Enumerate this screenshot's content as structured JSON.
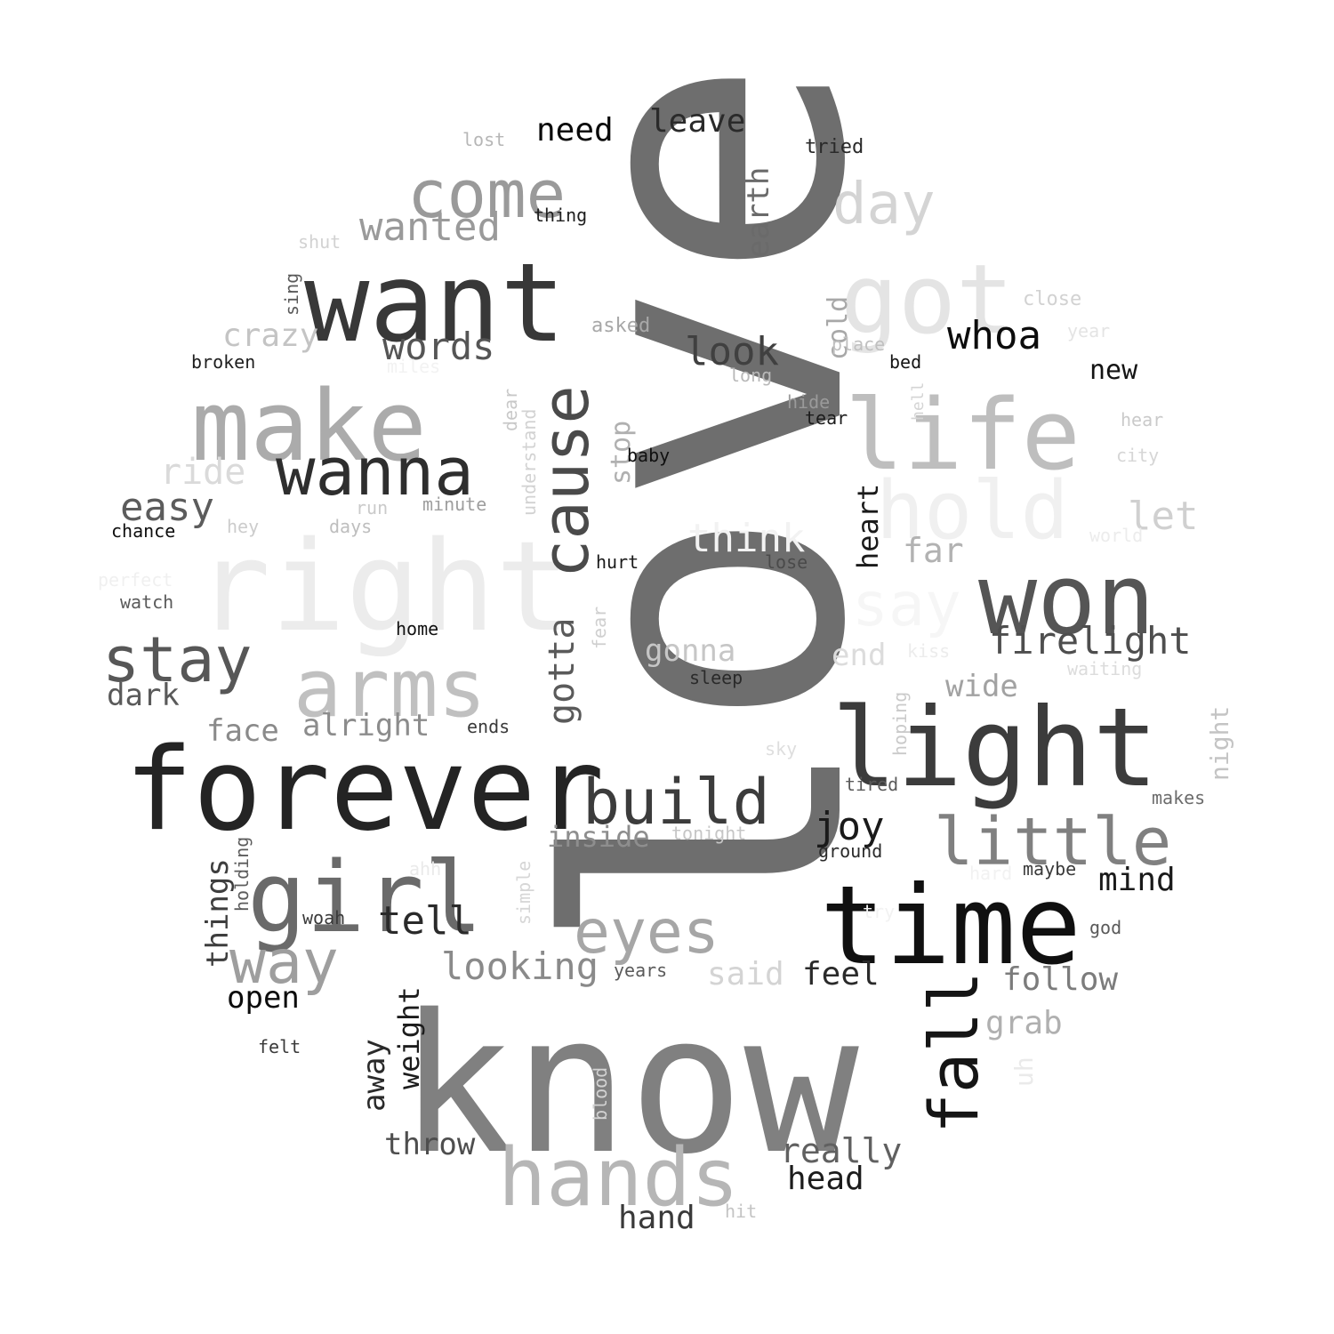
{
  "words": [
    {
      "text": "love",
      "color": "#6e6e6e",
      "vertical": true
    },
    {
      "text": "know",
      "color": "#808080"
    },
    {
      "text": "right",
      "color": "#ececec"
    },
    {
      "text": "forever",
      "color": "#242424"
    },
    {
      "text": "want",
      "color": "#383838"
    },
    {
      "text": "time",
      "color": "#101010"
    },
    {
      "text": "light",
      "color": "#3c3c3c"
    },
    {
      "text": "make",
      "color": "#ababab"
    },
    {
      "text": "life",
      "color": "#bebebe"
    },
    {
      "text": "girl",
      "color": "#6a6a6a"
    },
    {
      "text": "won",
      "color": "#555555"
    },
    {
      "text": "got",
      "color": "#e4e4e4"
    },
    {
      "text": "arms",
      "color": "#c0c0c0"
    },
    {
      "text": "hold",
      "color": "#f0f0f0"
    },
    {
      "text": "hands",
      "color": "#b6b6b6"
    },
    {
      "text": "come",
      "color": "#9a9a9a"
    },
    {
      "text": "cause",
      "color": "#4a4a4a",
      "vertical": true
    },
    {
      "text": "wanna",
      "color": "#2e2e2e"
    },
    {
      "text": "little",
      "color": "#808080"
    },
    {
      "text": "fall",
      "color": "#151515",
      "vertical": true
    },
    {
      "text": "stay",
      "color": "#575757"
    },
    {
      "text": "build",
      "color": "#3c3c3c"
    },
    {
      "text": "eyes",
      "color": "#a6a6a6"
    },
    {
      "text": "way",
      "color": "#9e9e9e"
    },
    {
      "text": "say",
      "color": "#f6f6f6"
    },
    {
      "text": "day",
      "color": "#d4d4d4"
    },
    {
      "text": "think",
      "color": "#f2f2f2"
    },
    {
      "text": "gotta",
      "color": "#5a5a5a",
      "vertical": true
    },
    {
      "text": "whoa",
      "color": "#0c0c0c"
    },
    {
      "text": "words",
      "color": "#555555"
    },
    {
      "text": "firelight",
      "color": "#4e4e4e"
    },
    {
      "text": "look",
      "color": "#404040"
    },
    {
      "text": "wanted",
      "color": "#9a9a9a"
    },
    {
      "text": "easy",
      "color": "#5c5c5c"
    },
    {
      "text": "tell",
      "color": "#2a2a2a"
    },
    {
      "text": "looking",
      "color": "#8a8a8a"
    },
    {
      "text": "leave",
      "color": "#2a2a2a"
    },
    {
      "text": "need",
      "color": "#0a0a0a"
    },
    {
      "text": "crazy",
      "color": "#c4c4c4"
    },
    {
      "text": "ride",
      "color": "#dadada"
    },
    {
      "text": "let",
      "color": "#d0d0d0"
    },
    {
      "text": "far",
      "color": "#b2b2b2"
    },
    {
      "text": "gonna",
      "color": "#c6c6c6"
    },
    {
      "text": "alright",
      "color": "#8c8c8c"
    },
    {
      "text": "face",
      "color": "#8a8a8a"
    },
    {
      "text": "dark",
      "color": "#5a5a5a"
    },
    {
      "text": "joy",
      "color": "#1a1a1a"
    },
    {
      "text": "end",
      "color": "#dcdcdc"
    },
    {
      "text": "wide",
      "color": "#a2a2a2"
    },
    {
      "text": "inside",
      "color": "#8e8e8e"
    },
    {
      "text": "mind",
      "color": "#1a1a1a"
    },
    {
      "text": "said",
      "color": "#d4d4d4"
    },
    {
      "text": "feel",
      "color": "#2a2a2a"
    },
    {
      "text": "follow",
      "color": "#7c7c7c"
    },
    {
      "text": "grab",
      "color": "#b0b0b0"
    },
    {
      "text": "open",
      "color": "#0c0c0c"
    },
    {
      "text": "throw",
      "color": "#4e4e4e"
    },
    {
      "text": "really",
      "color": "#606060"
    },
    {
      "text": "head",
      "color": "#1c1c1c"
    },
    {
      "text": "hand",
      "color": "#3a3a3a"
    },
    {
      "text": "new",
      "color": "#141414"
    },
    {
      "text": "things",
      "color": "#3e3e3e",
      "vertical": true
    },
    {
      "text": "away",
      "color": "#2a2a2a",
      "vertical": true
    },
    {
      "text": "weight",
      "color": "#1c1c1c",
      "vertical": true
    },
    {
      "text": "heart",
      "color": "#1a1a1a",
      "vertical": true
    },
    {
      "text": "earth",
      "color": "#6a6a6a",
      "vertical": true
    },
    {
      "text": "stop",
      "color": "#b0b0b0",
      "vertical": true
    },
    {
      "text": "cold",
      "color": "#a8a8a8",
      "vertical": true
    },
    {
      "text": "night",
      "color": "#c4c4c4",
      "vertical": true
    },
    {
      "text": "uh",
      "color": "#eaeaea",
      "vertical": true
    },
    {
      "text": "lost",
      "color": "#b6b6b6"
    },
    {
      "text": "tried",
      "color": "#2a2a2a"
    },
    {
      "text": "thing",
      "color": "#1e1e1e"
    },
    {
      "text": "shut",
      "color": "#d2d2d2"
    },
    {
      "text": "sing",
      "color": "#5a5a5a",
      "vertical": true
    },
    {
      "text": "close",
      "color": "#d2d2d2"
    },
    {
      "text": "year",
      "color": "#e4e4e4"
    },
    {
      "text": "asked",
      "color": "#a8a8a8"
    },
    {
      "text": "place",
      "color": "#c0c0c0"
    },
    {
      "text": "bed",
      "color": "#141414"
    },
    {
      "text": "broken",
      "color": "#1e1e1e"
    },
    {
      "text": "miles",
      "color": "#f2f2f2"
    },
    {
      "text": "long",
      "color": "#b8b8b8"
    },
    {
      "text": "hide",
      "color": "#9a9a9a"
    },
    {
      "text": "tear",
      "color": "#1c1c1c"
    },
    {
      "text": "hell",
      "color": "#d4d4d4",
      "vertical": true
    },
    {
      "text": "hear",
      "color": "#cacaca"
    },
    {
      "text": "dear",
      "color": "#c8c8c8",
      "vertical": true
    },
    {
      "text": "understand",
      "color": "#d2d2d2",
      "vertical": true
    },
    {
      "text": "baby",
      "color": "#101010"
    },
    {
      "text": "city",
      "color": "#d6d6d6"
    },
    {
      "text": "run",
      "color": "#cacaca"
    },
    {
      "text": "minute",
      "color": "#9e9e9e"
    },
    {
      "text": "hey",
      "color": "#cccccc"
    },
    {
      "text": "days",
      "color": "#bebebe"
    },
    {
      "text": "chance",
      "color": "#0e0e0e"
    },
    {
      "text": "world",
      "color": "#ececec"
    },
    {
      "text": "hurt",
      "color": "#1a1a1a"
    },
    {
      "text": "lose",
      "color": "#4a4a4a"
    },
    {
      "text": "perfect",
      "color": "#f0f0f0"
    },
    {
      "text": "watch",
      "color": "#5a5a5a"
    },
    {
      "text": "fear",
      "color": "#cfcfcf",
      "vertical": true
    },
    {
      "text": "home",
      "color": "#121212"
    },
    {
      "text": "kiss",
      "color": "#ececec"
    },
    {
      "text": "waiting",
      "color": "#dcdcdc"
    },
    {
      "text": "sleep",
      "color": "#2a2a2a"
    },
    {
      "text": "hoping",
      "color": "#cacaca",
      "vertical": true
    },
    {
      "text": "ends",
      "color": "#3a3a3a"
    },
    {
      "text": "sky",
      "color": "#dedede"
    },
    {
      "text": "tired",
      "color": "#5a5a5a"
    },
    {
      "text": "makes",
      "color": "#6c6c6c"
    },
    {
      "text": "holding",
      "color": "#5c5c5c",
      "vertical": true
    },
    {
      "text": "tonight",
      "color": "#c6c6c6"
    },
    {
      "text": "ground",
      "color": "#2a2a2a"
    },
    {
      "text": "ahh",
      "color": "#eaeaea"
    },
    {
      "text": "simple",
      "color": "#d6d6d6",
      "vertical": true
    },
    {
      "text": "hard",
      "color": "#f2f2f2"
    },
    {
      "text": "maybe",
      "color": "#3a3a3a"
    },
    {
      "text": "woah",
      "color": "#3a3a3a"
    },
    {
      "text": "try",
      "color": "#f2f2f2"
    },
    {
      "text": "god",
      "color": "#5a5a5a"
    },
    {
      "text": "years",
      "color": "#5a5a5a"
    },
    {
      "text": "felt",
      "color": "#3a3a3a"
    },
    {
      "text": "blood",
      "color": "#d2d2d2",
      "vertical": true
    },
    {
      "text": "hit",
      "color": "#c4c4c4"
    }
  ]
}
